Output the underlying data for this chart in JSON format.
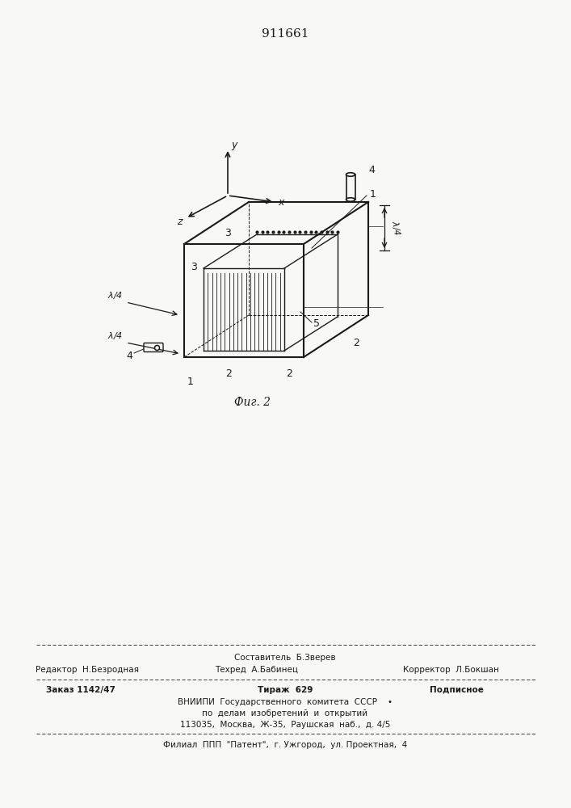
{
  "title_number": "911661",
  "bg_color": "#f8f8f5",
  "line_color": "#1a1a1a",
  "figure_caption": "Фиг. 2",
  "footer_composer": "Составитель  Б.Зверев",
  "footer_editor": "Редактор  Н.Безродная",
  "footer_techred": "Техред  А.Бабинец",
  "footer_corrector": "Корректор  Л.Бокшан",
  "footer_order": "Заказ 1142/47",
  "footer_tirazh": "Тираж  629",
  "footer_podpisnoe": "Подписное",
  "footer_vniipи": "ВНИИПИ  Государственного  комитета  СССР    •",
  "footer_po_delam": "по  делам  изобретений  и  открытий",
  "footer_address": "113035,  Москва,  Ж-35,  Раушская  наб.,  д. 4/5",
  "footer_filial": "Филиал  ППП  \"Патент\",  г. Ужгород,  ул. Проектная,  4"
}
